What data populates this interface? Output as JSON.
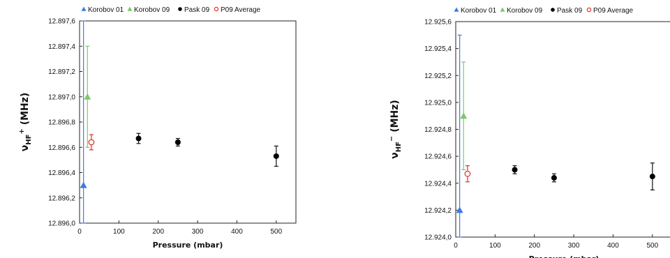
{
  "chart_data": [
    {
      "type": "scatter",
      "title": "",
      "xlabel": "Pressure (mbar)",
      "ylabel": {
        "main": "ν",
        "sub": "HF",
        "sup": "+",
        "unit": " (MHz)"
      },
      "xlim": [
        0,
        550
      ],
      "ylim": [
        12.896,
        12.8976
      ],
      "xticks": [
        0,
        100,
        200,
        300,
        400,
        500
      ],
      "xtick_labels": [
        "0",
        "100",
        "200",
        "300",
        "400",
        "500"
      ],
      "yticks": [
        12.896,
        12.8962,
        12.8964,
        12.8966,
        12.8968,
        12.897,
        12.8972,
        12.8974,
        12.8976
      ],
      "ytick_labels": [
        "12.896,0",
        "12.896,2",
        "12.896,4",
        "12.896,6",
        "12.896,8",
        "12.897,0",
        "12.897,2",
        "12.897,4",
        "12.897,6"
      ],
      "grid": false,
      "legend_position": "top",
      "series": [
        {
          "name": "Korobov 01",
          "marker": "triangle",
          "color": "#3b7be0",
          "points": [
            {
              "x": 10,
              "y": 12.8963,
              "err": 0.0013
            }
          ]
        },
        {
          "name": "Korobov 09",
          "marker": "triangle",
          "color": "#7ec86a",
          "points": [
            {
              "x": 20,
              "y": 12.897,
              "err": 0.0004
            }
          ]
        },
        {
          "name": "Pask 09",
          "marker": "filled-circle",
          "color": "#000000",
          "points": [
            {
              "x": 150,
              "y": 12.89667,
              "err": 4e-05
            },
            {
              "x": 250,
              "y": 12.89664,
              "err": 3e-05
            },
            {
              "x": 500,
              "y": 12.89653,
              "err": 8e-05
            }
          ]
        },
        {
          "name": "P09 Average",
          "marker": "open-circle",
          "color": "#e03020",
          "points": [
            {
              "x": 30,
              "y": 12.89664,
              "err": 6e-05
            }
          ]
        }
      ]
    },
    {
      "type": "scatter",
      "title": "",
      "xlabel": "Pressure (mbar)",
      "ylabel": {
        "main": "ν",
        "sub": "HF",
        "sup": "−",
        "unit": " (MHz)"
      },
      "xlim": [
        0,
        550
      ],
      "ylim": [
        12.924,
        12.9256
      ],
      "xticks": [
        0,
        100,
        200,
        300,
        400,
        500
      ],
      "xtick_labels": [
        "0",
        "100",
        "200",
        "300",
        "400",
        "500"
      ],
      "yticks": [
        12.924,
        12.9242,
        12.9244,
        12.9246,
        12.9248,
        12.925,
        12.9252,
        12.9254,
        12.9256
      ],
      "ytick_labels": [
        "12.924,0",
        "12.924,2",
        "12.924,4",
        "12.924,6",
        "12.924,8",
        "12.925,0",
        "12.925,2",
        "12.925,4",
        "12.925,6"
      ],
      "grid": false,
      "legend_position": "top",
      "series": [
        {
          "name": "Korobov 01",
          "marker": "triangle",
          "color": "#3b7be0",
          "points": [
            {
              "x": 10,
              "y": 12.9242,
              "err": 0.0013
            }
          ]
        },
        {
          "name": "Korobov 09",
          "marker": "triangle",
          "color": "#7ec86a",
          "points": [
            {
              "x": 20,
              "y": 12.9249,
              "err": 0.0004
            }
          ]
        },
        {
          "name": "Pask 09",
          "marker": "filled-circle",
          "color": "#000000",
          "points": [
            {
              "x": 150,
              "y": 12.9245,
              "err": 3e-05
            },
            {
              "x": 250,
              "y": 12.92444,
              "err": 3e-05
            },
            {
              "x": 500,
              "y": 12.92445,
              "err": 0.0001
            }
          ]
        },
        {
          "name": "P09 Average",
          "marker": "open-circle",
          "color": "#e03020",
          "points": [
            {
              "x": 30,
              "y": 12.92447,
              "err": 6e-05
            }
          ]
        }
      ]
    }
  ]
}
